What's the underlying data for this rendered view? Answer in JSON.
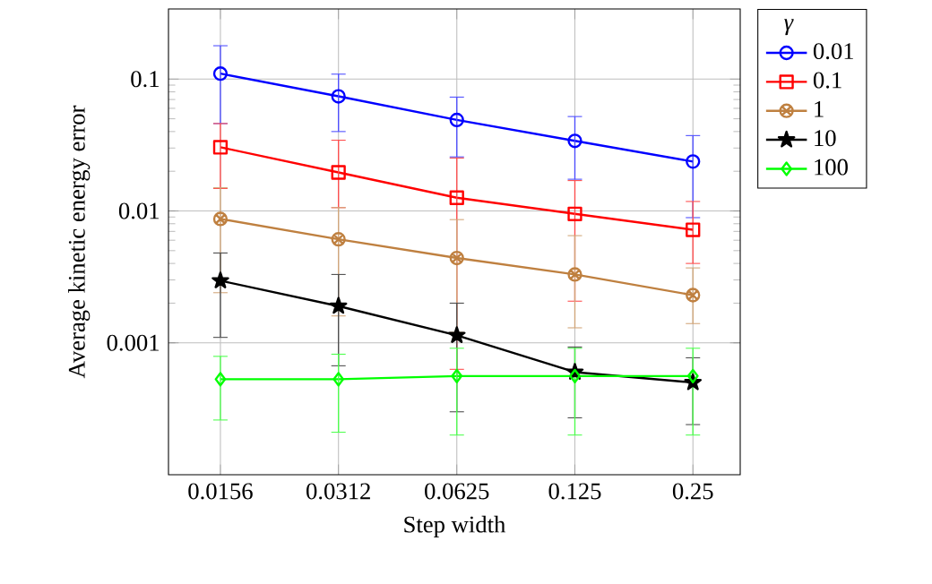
{
  "chart_data": {
    "type": "line",
    "xlabel": "Step width",
    "ylabel": "Average kinetic energy error",
    "legend_title": "*γ*",
    "x": [
      0.0156,
      0.0312,
      0.0625,
      0.125,
      0.25
    ],
    "series": [
      {
        "name": "0.01",
        "color": "#0000ff",
        "marker": "circle",
        "values": [
          0.11,
          0.074,
          0.049,
          0.034,
          0.0237
        ],
        "errors": [
          [
            0.046,
            0.179
          ],
          [
            0.04,
            0.109
          ],
          [
            0.0257,
            0.073
          ],
          [
            0.0174,
            0.052
          ],
          [
            0.0089,
            0.0373
          ]
        ]
      },
      {
        "name": "0.1",
        "color": "#ff0000",
        "marker": "square",
        "values": [
          0.0304,
          0.0196,
          0.0126,
          0.0095,
          0.0072
        ],
        "errors": [
          [
            0.0148,
            0.046
          ],
          [
            0.0106,
            0.0344
          ],
          [
            0.00063,
            0.0252
          ],
          [
            0.00207,
            0.017
          ],
          [
            0.004,
            0.0118
          ]
        ]
      },
      {
        "name": "1",
        "color": "#bf8040",
        "marker": "cross",
        "values": [
          0.0087,
          0.0061,
          0.0044,
          0.0033,
          0.0023
        ],
        "errors": [
          [
            0.0024,
            0.015
          ],
          [
            0.0016,
            0.0106
          ],
          [
            0.0012,
            0.0086
          ],
          [
            0.0013,
            0.0065
          ],
          [
            0.0014,
            0.0037
          ]
        ]
      },
      {
        "name": "10",
        "color": "#000000",
        "marker": "star",
        "values": [
          0.00296,
          0.0019,
          0.00114,
          0.0006,
          0.0005
        ],
        "errors": [
          [
            0.0011,
            0.0048
          ],
          [
            0.00067,
            0.0033
          ],
          [
            0.0003,
            0.002
          ],
          [
            0.00027,
            0.00093
          ],
          [
            0.00024,
            0.00077
          ]
        ]
      },
      {
        "name": "100",
        "color": "#00ff00",
        "marker": "diamond",
        "values": [
          0.00053,
          0.00053,
          0.00056,
          0.00056,
          0.00056
        ],
        "errors": [
          [
            0.00026,
            0.00079
          ],
          [
            0.00021,
            0.00082
          ],
          [
            0.0002,
            0.00091
          ],
          [
            0.0002,
            0.00091
          ],
          [
            0.0002,
            0.00091
          ]
        ]
      }
    ],
    "log": "xy",
    "xlim": [
      0.0115,
      0.33
    ],
    "ylim": [
      0.0001,
      0.34
    ],
    "xticks": [
      0.0156,
      0.0312,
      0.0625,
      0.125,
      0.25
    ],
    "yticks": [
      0.001,
      0.01,
      0.1
    ],
    "grid": true,
    "legend": "top right",
    "line_style": "solid"
  }
}
